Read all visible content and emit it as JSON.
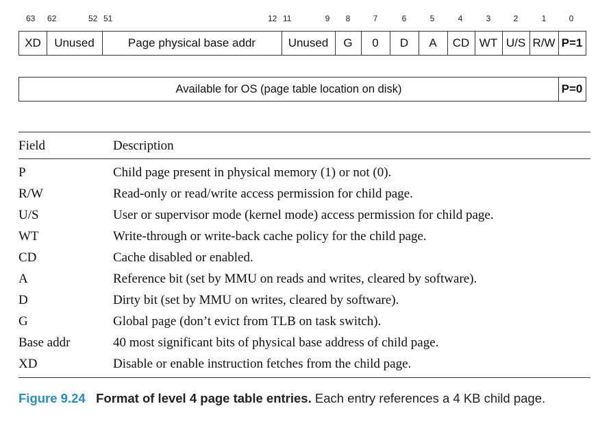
{
  "bit_numbers": [
    "63",
    "62",
    "52",
    "51",
    "12",
    "11",
    "9",
    "8",
    "7",
    "6",
    "5",
    "4",
    "3",
    "2",
    "1",
    "0"
  ],
  "entry_present": {
    "fields": [
      "XD",
      "Unused",
      "Page physical base addr",
      "Unused",
      "G",
      "0",
      "D",
      "A",
      "CD",
      "WT",
      "U/S",
      "R/W",
      "P=1"
    ]
  },
  "entry_absent": {
    "available": "Available for OS (page table location on disk)",
    "present_bit": "P=0"
  },
  "table": {
    "header_field": "Field",
    "header_description": "Description",
    "rows": [
      {
        "field": "P",
        "description": "Child page present in physical memory (1) or not (0)."
      },
      {
        "field": "R/W",
        "description": "Read-only or read/write access permission for child page."
      },
      {
        "field": "U/S",
        "description": "User or supervisor mode (kernel mode) access permission for child page."
      },
      {
        "field": "WT",
        "description": "Write-through or write-back cache policy for the child page."
      },
      {
        "field": "CD",
        "description": "Cache disabled or enabled."
      },
      {
        "field": "A",
        "description": "Reference bit (set by MMU on reads and writes, cleared by software)."
      },
      {
        "field": "D",
        "description": "Dirty bit (set by MMU on writes, cleared by software)."
      },
      {
        "field": "G",
        "description": "Global page (don’t evict from TLB on task switch)."
      },
      {
        "field": "Base addr",
        "description": "40 most significant bits of physical base address of child page."
      },
      {
        "field": "XD",
        "description": "Disable or enable instruction fetches from the child page."
      }
    ]
  },
  "caption": {
    "figure_number": "Figure 9.24",
    "title": "Format of level 4 page table entries.",
    "text": " Each entry references a 4 KB child page."
  },
  "colors": {
    "figure_number": "#2a8fc6",
    "rules": "#333333"
  }
}
